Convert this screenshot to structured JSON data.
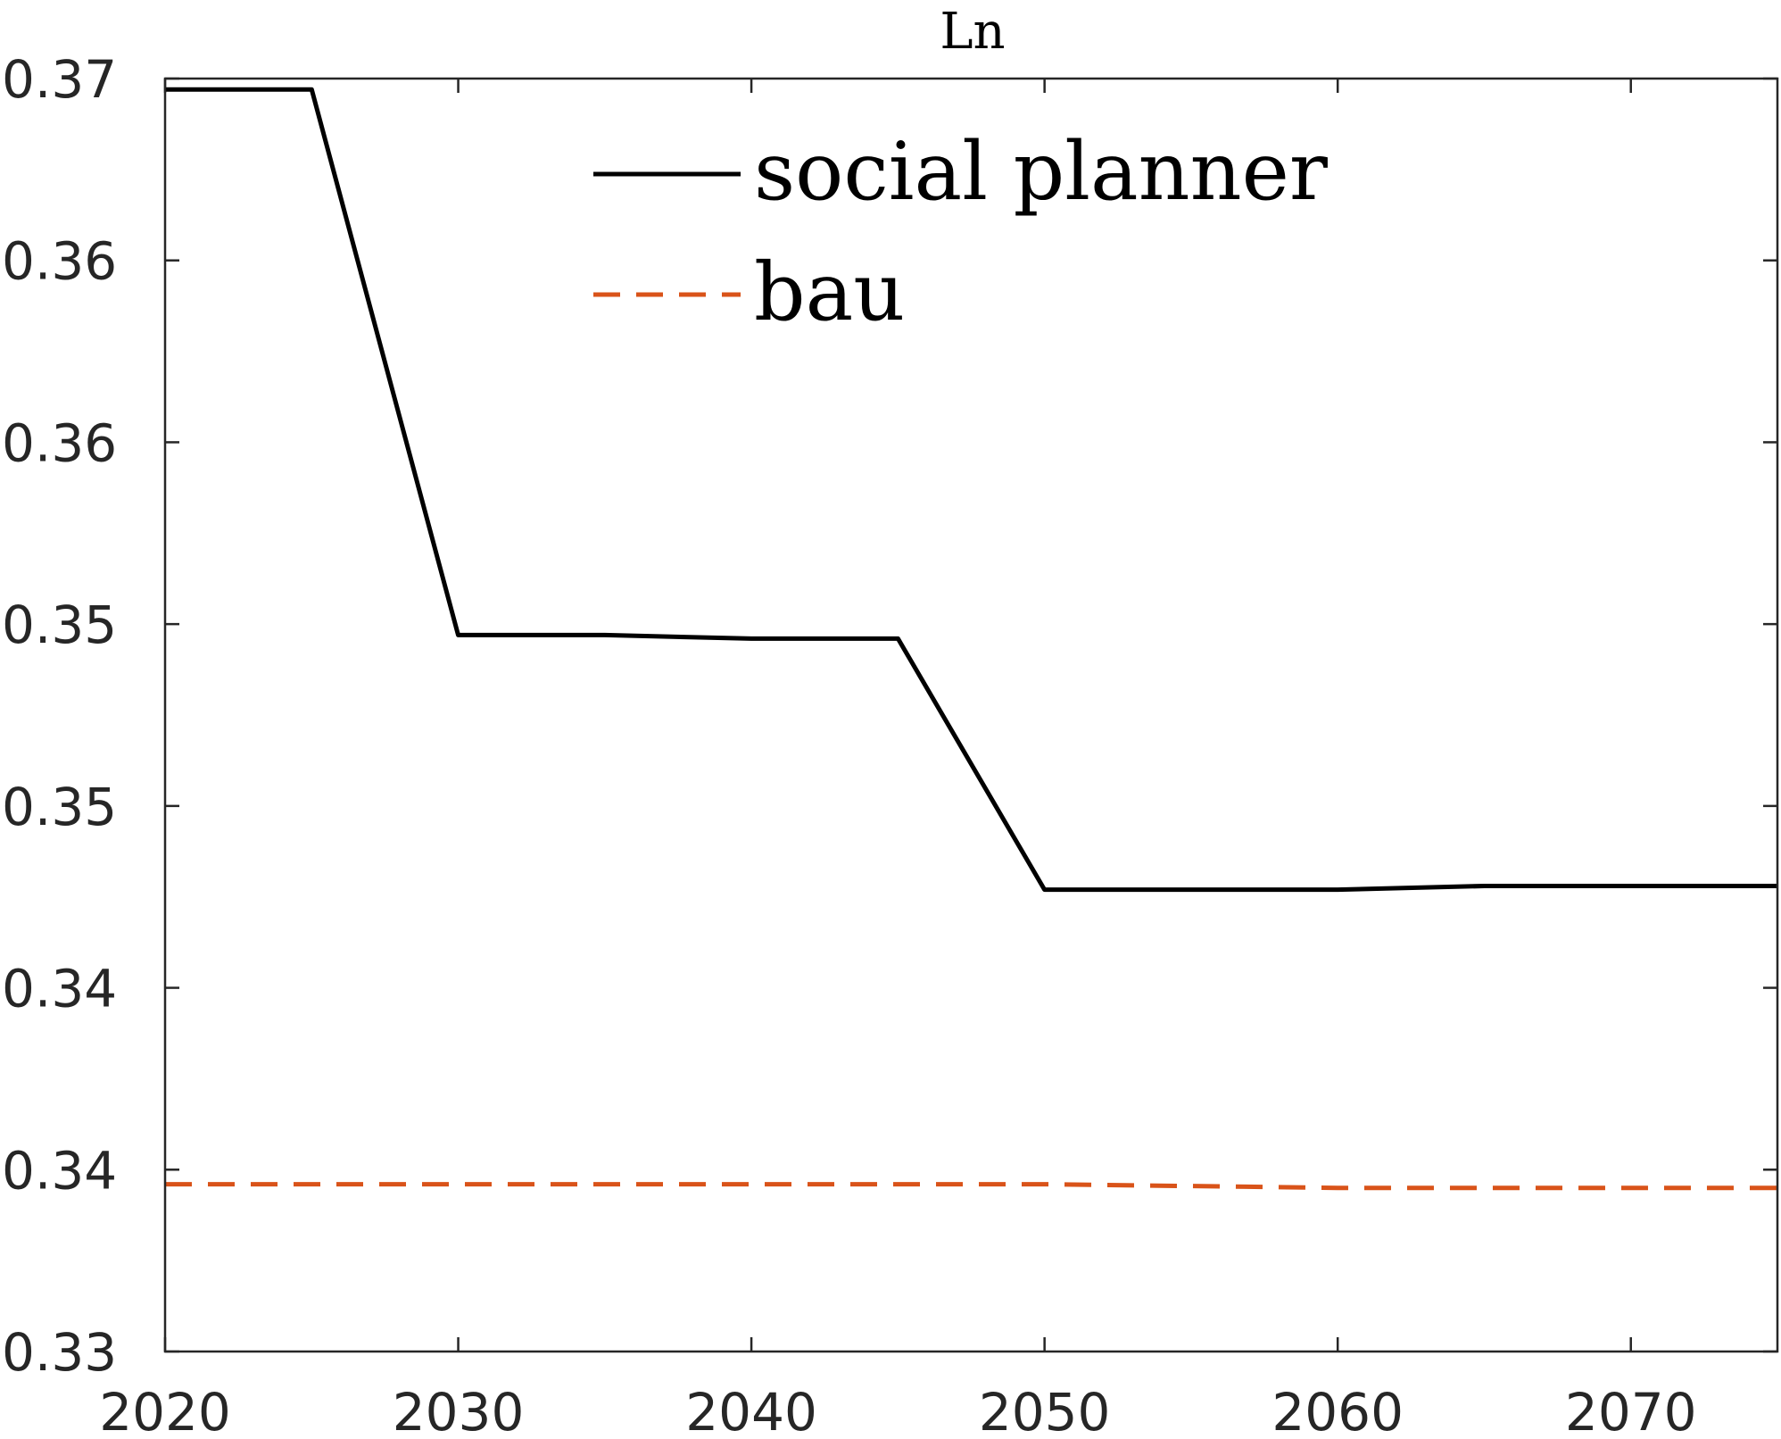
{
  "chart_data": {
    "type": "line",
    "title": "Ln",
    "xlabel": "",
    "ylabel": "",
    "xlim": [
      2020,
      2075
    ],
    "ylim": [
      0.33,
      0.365
    ],
    "x_ticks": [
      2020,
      2030,
      2040,
      2050,
      2060,
      2070
    ],
    "x_tick_labels": [
      "2020",
      "2030",
      "2040",
      "2050",
      "2060",
      "2070"
    ],
    "y_ticks": [
      0.33,
      0.335,
      0.34,
      0.345,
      0.35,
      0.355,
      0.36,
      0.365
    ],
    "y_tick_labels": [
      "0.33",
      "0.34",
      "0.34",
      "0.35",
      "0.35",
      "0.36",
      "0.36",
      "0.37"
    ],
    "grid": false,
    "legend_position": "top-center",
    "series": [
      {
        "name": "social planner",
        "style": "solid",
        "color": "#000000",
        "x": [
          2020,
          2025,
          2030,
          2035,
          2040,
          2045,
          2050,
          2055,
          2060,
          2065,
          2070,
          2075
        ],
        "y": [
          0.3647,
          0.3647,
          0.3497,
          0.3497,
          0.3496,
          0.3496,
          0.3427,
          0.3427,
          0.3427,
          0.3428,
          0.3428,
          0.3428
        ]
      },
      {
        "name": "bau",
        "style": "dashed",
        "color": "#D95319",
        "x": [
          2020,
          2030,
          2040,
          2050,
          2060,
          2070,
          2075
        ],
        "y": [
          0.3346,
          0.3346,
          0.3346,
          0.3346,
          0.3345,
          0.3345,
          0.3345
        ]
      }
    ]
  }
}
